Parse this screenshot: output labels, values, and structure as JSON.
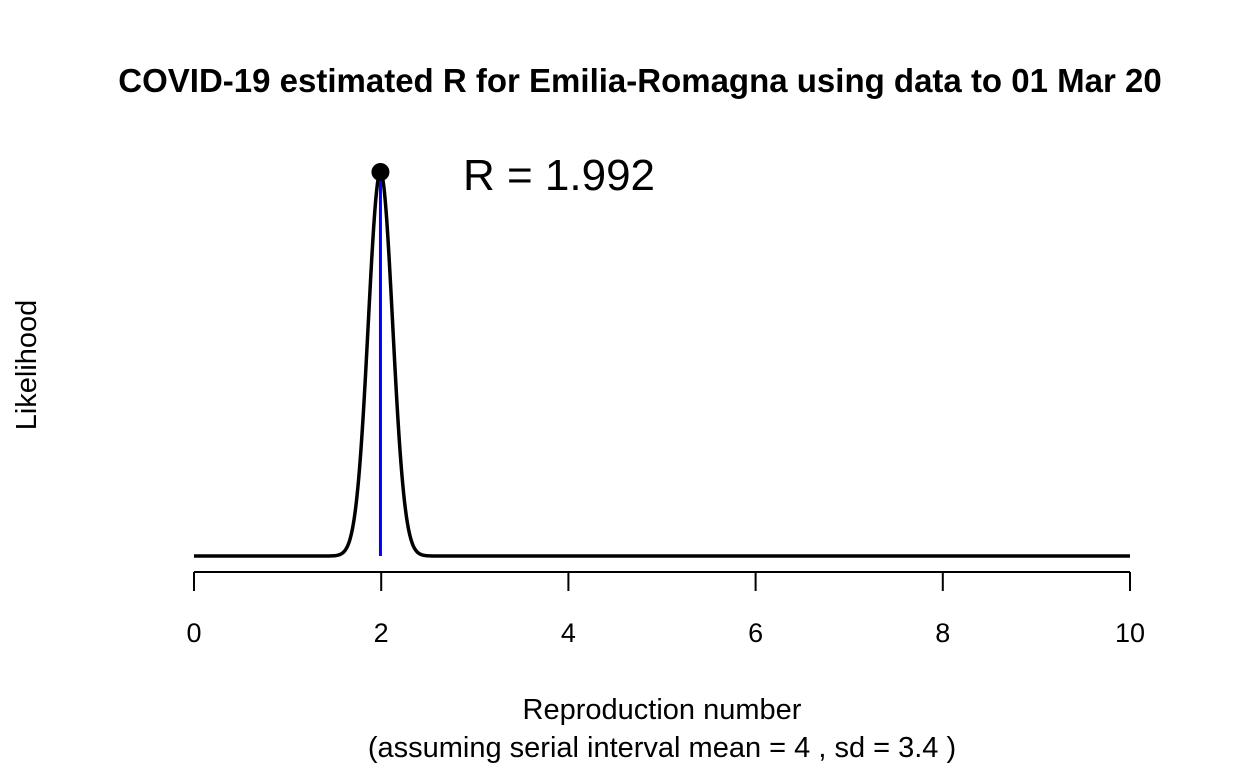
{
  "chart_data": {
    "type": "line",
    "title": "COVID-19 estimated R for Emilia-Romagna using data to 01 Mar 20",
    "xlabel": "Reproduction number",
    "xlabel_sub": "(assuming serial interval mean = 4 , sd = 3.4 )",
    "ylabel": "Likelihood",
    "xlim": [
      0,
      10
    ],
    "ylim": [
      0,
      1
    ],
    "x_ticks": [
      0,
      2,
      4,
      6,
      8,
      10
    ],
    "x_tick_labels": [
      "0",
      "2",
      "4",
      "6",
      "8",
      "10"
    ],
    "grid": false,
    "legend": "none",
    "series": [
      {
        "curve": "normalized likelihood",
        "color": "#000000",
        "peak_x": 1.992,
        "peak_y": 1.0,
        "spread_sd": 0.13,
        "points": [
          [
            0.0,
            0.0
          ],
          [
            1.5,
            0.0
          ],
          [
            1.6,
            0.004
          ],
          [
            1.7,
            0.06
          ],
          [
            1.8,
            0.33
          ],
          [
            1.9,
            0.78
          ],
          [
            1.992,
            1.0
          ],
          [
            2.1,
            0.7
          ],
          [
            2.2,
            0.28
          ],
          [
            2.3,
            0.06
          ],
          [
            2.4,
            0.007
          ],
          [
            2.5,
            0.0
          ],
          [
            10.0,
            0.0
          ]
        ]
      }
    ],
    "estimate": {
      "value": 1.992,
      "label": "R = 1.992",
      "marker_color": "#000000",
      "line_color": "#0000ff"
    }
  }
}
